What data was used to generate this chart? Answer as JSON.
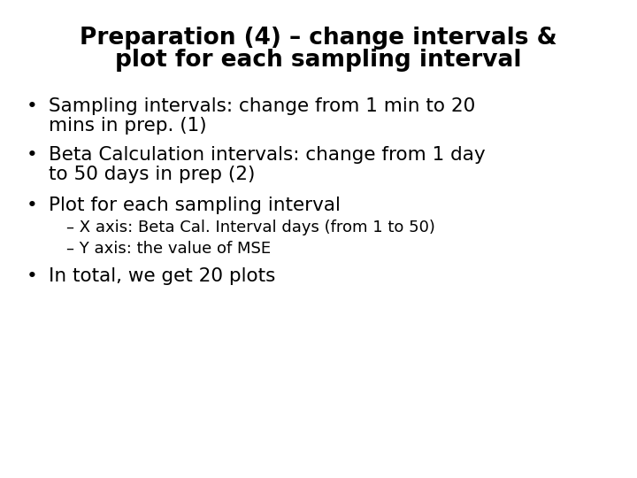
{
  "title_line1": "Preparation (4) – change intervals &",
  "title_line2": "plot for each sampling interval",
  "bullet1_line1": "Sampling intervals: change from 1 min to 20",
  "bullet1_line2": "mins in prep. (1)",
  "bullet2_line1": "Beta Calculation intervals: change from 1 day",
  "bullet2_line2": "to 50 days in prep (2)",
  "bullet3": "Plot for each sampling interval",
  "sub1": "– X axis: Beta Cal. Interval days (from 1 to 50)",
  "sub2": "– Y axis: the value of MSE",
  "bullet4": "In total, we get 20 plots",
  "bg_color": "#ffffff",
  "text_color": "#000000",
  "title_fontsize": 19,
  "bullet_fontsize": 15.5,
  "sub_fontsize": 13
}
